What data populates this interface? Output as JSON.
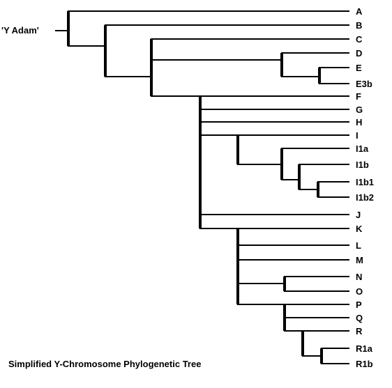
{
  "root_label": "'Y Adam'",
  "caption": "Simplified Y-Chromosome Phylogenetic Tree",
  "tree": {
    "id": "root",
    "children": [
      {
        "id": "A",
        "label": "A"
      },
      {
        "id": "n1",
        "children": [
          {
            "id": "B",
            "label": "B"
          },
          {
            "id": "n2",
            "children": [
              {
                "id": "C",
                "label": "C"
              },
              {
                "id": "n3",
                "children": [
                  {
                    "id": "D",
                    "label": "D"
                  },
                  {
                    "id": "n4",
                    "children": [
                      {
                        "id": "E",
                        "label": "E"
                      },
                      {
                        "id": "E3b",
                        "label": "E3b"
                      }
                    ]
                  }
                ]
              },
              {
                "id": "F",
                "label": "F",
                "internal": true,
                "children": [
                  {
                    "id": "G",
                    "label": "G"
                  },
                  {
                    "id": "H",
                    "label": "H"
                  },
                  {
                    "id": "I",
                    "label": "I",
                    "internal": true,
                    "children": [
                      {
                        "id": "n5",
                        "children": [
                          {
                            "id": "I1a",
                            "label": "I1a"
                          },
                          {
                            "id": "n6",
                            "children": [
                              {
                                "id": "I1b",
                                "label": "I1b"
                              },
                              {
                                "id": "n7",
                                "children": [
                                  {
                                    "id": "I1b1",
                                    "label": "I1b1"
                                  },
                                  {
                                    "id": "I1b2",
                                    "label": "I1b2"
                                  }
                                ]
                              }
                            ]
                          }
                        ]
                      }
                    ]
                  },
                  {
                    "id": "J",
                    "label": "J"
                  },
                  {
                    "id": "K",
                    "label": "K",
                    "internal": true,
                    "children": [
                      {
                        "id": "L",
                        "label": "L"
                      },
                      {
                        "id": "M",
                        "label": "M"
                      },
                      {
                        "id": "n8",
                        "children": [
                          {
                            "id": "N",
                            "label": "N"
                          },
                          {
                            "id": "O",
                            "label": "O"
                          }
                        ]
                      },
                      {
                        "id": "P",
                        "label": "P",
                        "internal": true,
                        "children": [
                          {
                            "id": "Q",
                            "label": "Q"
                          },
                          {
                            "id": "R",
                            "label": "R",
                            "internal": true,
                            "children": [
                              {
                                "id": "n9",
                                "children": [
                                  {
                                    "id": "R1a",
                                    "label": "R1a"
                                  },
                                  {
                                    "id": "R1b",
                                    "label": "R1b"
                                  }
                                ]
                              }
                            ]
                          }
                        ]
                      }
                    ]
                  }
                ]
              }
            ]
          }
        ]
      }
    ]
  }
}
